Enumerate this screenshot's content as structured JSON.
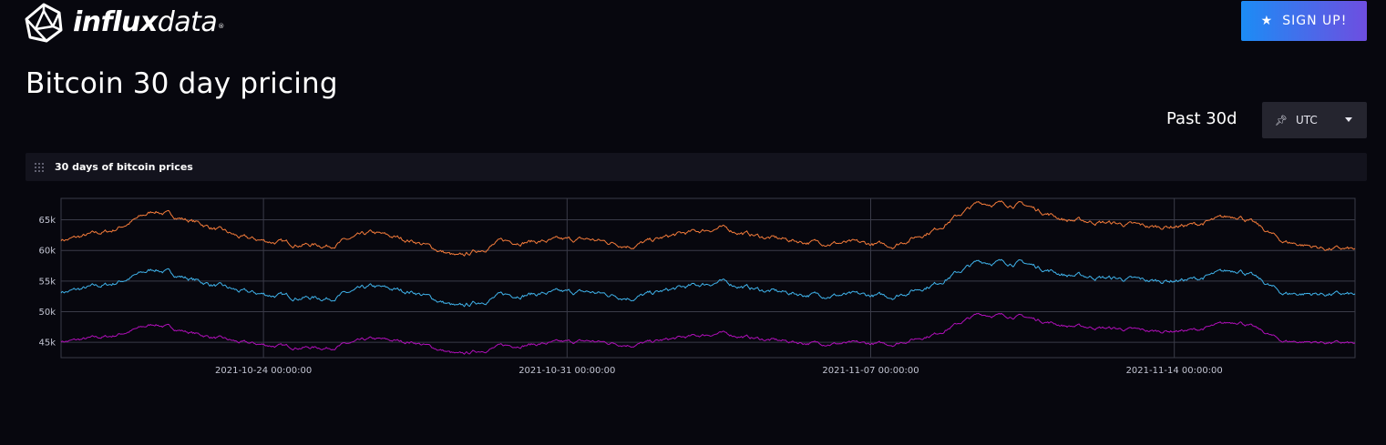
{
  "header": {
    "logo_name": "influxdata",
    "logo_bold": "influx",
    "logo_light": "data",
    "logo_mark": "®",
    "signup_label": "SIGN UP!"
  },
  "page": {
    "title": "Bitcoin 30 day pricing"
  },
  "controls": {
    "time_range": "Past 30d",
    "timezone": "UTC"
  },
  "panel": {
    "title": "30 days of bitcoin prices"
  },
  "colors": {
    "background": "#07070e",
    "panel_header": "#13131d",
    "grid": "#3a3b48",
    "series_high": "#f47b3a",
    "series_mid": "#3fb2ea",
    "series_low": "#b00fb9"
  },
  "chart_data": {
    "type": "line",
    "title": "30 days of bitcoin prices",
    "xlabel": "",
    "ylabel": "",
    "x_start": "2021-10-19 08:00:00",
    "x_end": "2021-11-18 04:00:00",
    "ylim": [
      42500,
      68500
    ],
    "y_ticks": [
      45000,
      50000,
      55000,
      60000,
      65000
    ],
    "y_tick_labels": [
      "45k",
      "50k",
      "55k",
      "60k",
      "65k"
    ],
    "x_ticks": [
      "2021-10-24 00:00:00",
      "2021-10-31 00:00:00",
      "2021-11-07 00:00:00",
      "2021-11-14 00:00:00"
    ],
    "grid": true,
    "legend": "none",
    "x": [
      "2021-10-19",
      "2021-10-20",
      "2021-10-21",
      "2021-10-22",
      "2021-10-23",
      "2021-10-24",
      "2021-10-25",
      "2021-10-26",
      "2021-10-27",
      "2021-10-28",
      "2021-10-29",
      "2021-10-30",
      "2021-10-31",
      "2021-11-01",
      "2021-11-02",
      "2021-11-03",
      "2021-11-04",
      "2021-11-05",
      "2021-11-06",
      "2021-11-07",
      "2021-11-08",
      "2021-11-09",
      "2021-11-10",
      "2021-11-11",
      "2021-11-12",
      "2021-11-13",
      "2021-11-14",
      "2021-11-15",
      "2021-11-16",
      "2021-11-17",
      "2021-11-18"
    ],
    "series": [
      {
        "color": "#f47b3a",
        "values": [
          61800,
          63200,
          66500,
          64500,
          62000,
          61200,
          60800,
          62800,
          61500,
          58800,
          61500,
          61500,
          61800,
          60800,
          62500,
          63700,
          62200,
          61400,
          61200,
          60800,
          63500,
          67800,
          67500,
          65000,
          64500,
          63800,
          64200,
          65800,
          61500,
          60300,
          60000
        ]
      },
      {
        "color": "#3fb2ea",
        "values": [
          53300,
          54500,
          57000,
          55000,
          53200,
          52500,
          52200,
          54000,
          53200,
          50600,
          52700,
          53000,
          53200,
          52300,
          53700,
          54900,
          53500,
          52800,
          52700,
          52500,
          54600,
          58200,
          58000,
          56000,
          55500,
          55000,
          55300,
          57000,
          53000,
          52900,
          52600
        ]
      },
      {
        "color": "#b00fb9",
        "values": [
          45200,
          46000,
          48000,
          46300,
          44900,
          44300,
          44100,
          45500,
          45000,
          42900,
          44400,
          44800,
          45200,
          44600,
          45600,
          46500,
          45500,
          44900,
          44800,
          44700,
          46400,
          49600,
          49200,
          47700,
          47300,
          46800,
          47000,
          48500,
          45200,
          45000,
          44600
        ]
      }
    ]
  }
}
